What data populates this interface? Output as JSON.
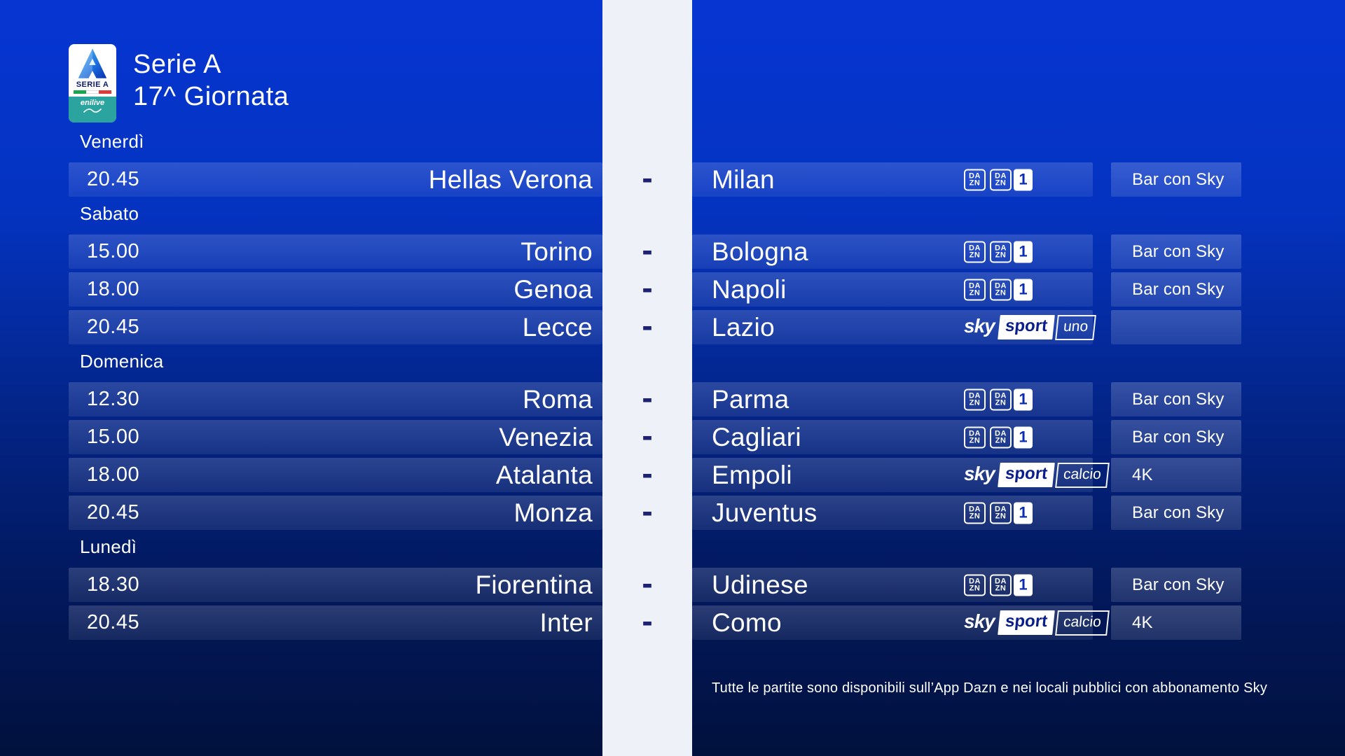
{
  "header": {
    "title_line1": "Serie A",
    "title_line2": "17^ Giornata",
    "logo": {
      "league_label": "SERIE A",
      "sponsor_label": "enilive"
    }
  },
  "separator": "-",
  "days": [
    {
      "label": "Venerdì",
      "matches": [
        {
          "time": "20.45",
          "home": "Hellas Verona",
          "away": "Milan",
          "channels": "dazn",
          "badge": "Bar con Sky"
        }
      ]
    },
    {
      "label": "Sabato",
      "matches": [
        {
          "time": "15.00",
          "home": "Torino",
          "away": "Bologna",
          "channels": "dazn",
          "badge": "Bar con Sky"
        },
        {
          "time": "18.00",
          "home": "Genoa",
          "away": "Napoli",
          "channels": "dazn",
          "badge": "Bar con Sky"
        },
        {
          "time": "20.45",
          "home": "Lecce",
          "away": "Lazio",
          "channels": "sky-uno",
          "badge": ""
        }
      ]
    },
    {
      "label": "Domenica",
      "matches": [
        {
          "time": "12.30",
          "home": "Roma",
          "away": "Parma",
          "channels": "dazn",
          "badge": "Bar con Sky"
        },
        {
          "time": "15.00",
          "home": "Venezia",
          "away": "Cagliari",
          "channels": "dazn",
          "badge": "Bar con Sky"
        },
        {
          "time": "18.00",
          "home": "Atalanta",
          "away": "Empoli",
          "channels": "sky-calcio",
          "badge": "4K"
        },
        {
          "time": "20.45",
          "home": "Monza",
          "away": "Juventus",
          "channels": "dazn",
          "badge": "Bar con Sky"
        }
      ]
    },
    {
      "label": "Lunedì",
      "matches": [
        {
          "time": "18.30",
          "home": "Fiorentina",
          "away": "Udinese",
          "channels": "dazn",
          "badge": "Bar con Sky"
        },
        {
          "time": "20.45",
          "home": "Inter",
          "away": "Como",
          "channels": "sky-calcio",
          "badge": "4K"
        }
      ]
    }
  ],
  "broadcasters": {
    "dazn": {
      "line1": "DA",
      "line2": "ZN",
      "channel_one": "1"
    },
    "sky": {
      "brand": "sky",
      "sport": "sport",
      "uno": "uno",
      "calcio": "calcio"
    }
  },
  "footer": {
    "disclaimer": "Tutte le partite sono disponibili sull’App Dazn e nei locali pubblici con abbonamento Sky"
  },
  "colors": {
    "bg_top": "#0635d2",
    "bg_bottom": "#01113d",
    "strip": "#eef1f8",
    "dash": "#1c2173",
    "sky_logo_blue": "#0a1e8c"
  }
}
